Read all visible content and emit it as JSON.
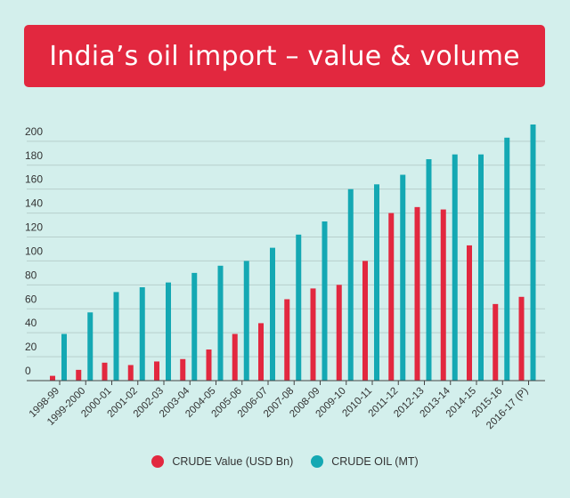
{
  "chart_data": {
    "type": "bar",
    "title": "India’s oil import – value & volume",
    "categories": [
      "1998-99",
      "1999-2000",
      "2000-01",
      "2001-02",
      "2002-03",
      "2003-04",
      "2004-05",
      "2005-06",
      "2006-07",
      "2007-08",
      "2008-09",
      "2009-10",
      "2010-11",
      "2011-12",
      "2012-13",
      "2013-14",
      "2014-15",
      "2015-16",
      "2016-17 (P)"
    ],
    "series": [
      {
        "name": "CRUDE Value (USD Bn)",
        "color": "#e2283f",
        "values": [
          4,
          9,
          15,
          13,
          16,
          18,
          26,
          39,
          48,
          68,
          77,
          80,
          100,
          140,
          145,
          143,
          113,
          64,
          70
        ]
      },
      {
        "name": "CRUDE OIL (MT)",
        "color": "#14a8b3",
        "values": [
          39,
          57,
          74,
          78,
          82,
          90,
          96,
          100,
          111,
          122,
          133,
          160,
          164,
          172,
          185,
          189,
          189,
          203,
          214
        ]
      }
    ],
    "yticks": [
      0,
      20,
      40,
      60,
      80,
      100,
      120,
      140,
      160,
      180,
      200
    ],
    "ylim": [
      0,
      214
    ],
    "grid": true,
    "legend_position": "bottom-center"
  }
}
